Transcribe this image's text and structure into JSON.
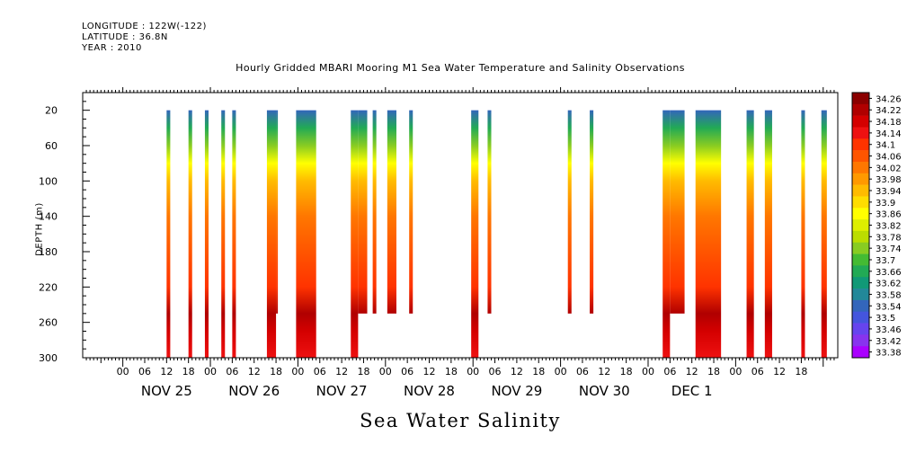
{
  "header": {
    "longitude": "LONGITUDE : 122W(-122)",
    "latitude": "LATITUDE : 36.8N",
    "year": "YEAR : 2010"
  },
  "chart_data": {
    "type": "heatmap",
    "title": "Hourly Gridded MBARI Mooring M1 Sea Water Temperature and Salinity Observations",
    "xlabel": "Sea Water Salinity",
    "ylabel": "DEPTH (m)",
    "x_hour_labels": [
      "00",
      "06",
      "12",
      "18",
      "00",
      "06",
      "12",
      "18",
      "00",
      "06",
      "12",
      "18",
      "00",
      "06",
      "12",
      "18",
      "00",
      "06",
      "12",
      "18",
      "00",
      "06",
      "12",
      "18",
      "00",
      "06",
      "12",
      "18",
      "00",
      "06",
      "12",
      "18"
    ],
    "x_day_labels": [
      "NOV 25",
      "NOV 26",
      "NOV 27",
      "NOV 28",
      "NOV 29",
      "NOV 30",
      "DEC  1"
    ],
    "xlim_hours": [
      -11,
      196
    ],
    "ylim": [
      300,
      0
    ],
    "y_ticks": [
      20,
      60,
      100,
      140,
      180,
      220,
      260,
      300
    ],
    "colorbar": {
      "levels": [
        34.26,
        34.22,
        34.18,
        34.14,
        34.1,
        34.06,
        34.02,
        33.98,
        33.94,
        33.9,
        33.86,
        33.82,
        33.78,
        33.74,
        33.7,
        33.66,
        33.62,
        33.58,
        33.54,
        33.5,
        33.46,
        33.42,
        33.38
      ],
      "colors": [
        "#8b0000",
        "#b00000",
        "#d40000",
        "#ee1111",
        "#ff3300",
        "#ff5500",
        "#ff7700",
        "#ff9900",
        "#ffbb00",
        "#ffdd00",
        "#ffff00",
        "#ddee00",
        "#bbdd00",
        "#88cc22",
        "#44bb33",
        "#22aa55",
        "#119977",
        "#228899",
        "#3366bb",
        "#4455dd",
        "#6644ee",
        "#8833ee",
        "#aa00ff"
      ]
    },
    "profile": [
      {
        "depth": 20,
        "value": 33.52
      },
      {
        "depth": 40,
        "value": 33.66
      },
      {
        "depth": 60,
        "value": 33.74
      },
      {
        "depth": 80,
        "value": 33.84
      },
      {
        "depth": 100,
        "value": 33.92
      },
      {
        "depth": 120,
        "value": 33.97
      },
      {
        "depth": 140,
        "value": 34.04
      },
      {
        "depth": 180,
        "value": 34.06
      },
      {
        "depth": 220,
        "value": 34.09
      },
      {
        "depth": 250,
        "value": 34.2
      },
      {
        "depth": 270,
        "value": 34.18
      },
      {
        "depth": 300,
        "value": 34.14
      }
    ],
    "segments": [
      {
        "start_hour": 12.0,
        "end_hour": 13.0,
        "max_depth": 300
      },
      {
        "start_hour": 18.0,
        "end_hour": 19.0,
        "max_depth": 300
      },
      {
        "start_hour": 22.5,
        "end_hour": 23.5,
        "max_depth": 300
      },
      {
        "start_hour": 27.0,
        "end_hour": 28.0,
        "max_depth": 300
      },
      {
        "start_hour": 30.0,
        "end_hour": 31.0,
        "max_depth": 300
      },
      {
        "start_hour": 39.5,
        "end_hour": 42.0,
        "max_depth": 300
      },
      {
        "start_hour": 42.0,
        "end_hour": 42.5,
        "max_depth": 250
      },
      {
        "start_hour": 47.5,
        "end_hour": 53.0,
        "max_depth": 300
      },
      {
        "start_hour": 62.5,
        "end_hour": 64.5,
        "max_depth": 300
      },
      {
        "start_hour": 64.5,
        "end_hour": 67.0,
        "max_depth": 250
      },
      {
        "start_hour": 68.5,
        "end_hour": 69.5,
        "max_depth": 250
      },
      {
        "start_hour": 72.5,
        "end_hour": 75.0,
        "max_depth": 250
      },
      {
        "start_hour": 78.5,
        "end_hour": 79.5,
        "max_depth": 250
      },
      {
        "start_hour": 95.5,
        "end_hour": 97.5,
        "max_depth": 300
      },
      {
        "start_hour": 100.0,
        "end_hour": 101.0,
        "max_depth": 250
      },
      {
        "start_hour": 122.0,
        "end_hour": 123.0,
        "max_depth": 250
      },
      {
        "start_hour": 128.0,
        "end_hour": 129.0,
        "max_depth": 250
      },
      {
        "start_hour": 148.0,
        "end_hour": 150.0,
        "max_depth": 300
      },
      {
        "start_hour": 150.0,
        "end_hour": 154.0,
        "max_depth": 250
      },
      {
        "start_hour": 157.0,
        "end_hour": 164.0,
        "max_depth": 300
      },
      {
        "start_hour": 171.0,
        "end_hour": 173.0,
        "max_depth": 300
      },
      {
        "start_hour": 176.0,
        "end_hour": 178.0,
        "max_depth": 300
      },
      {
        "start_hour": 186.0,
        "end_hour": 187.0,
        "max_depth": 300
      },
      {
        "start_hour": 191.5,
        "end_hour": 193.0,
        "max_depth": 300
      }
    ]
  }
}
